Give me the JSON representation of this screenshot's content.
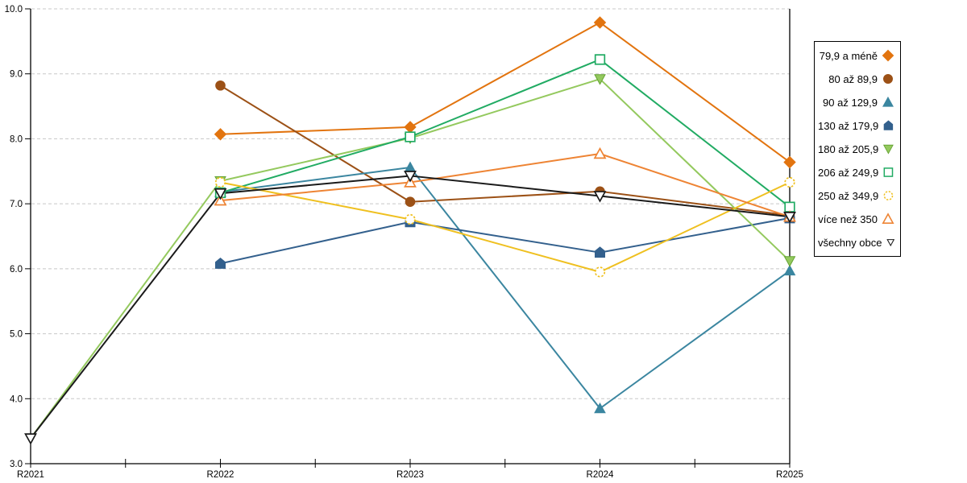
{
  "page": {
    "background": "#ffffff",
    "axis_color": "#000000",
    "grid_color": "#c8c8c8"
  },
  "chart_data": {
    "type": "line",
    "title": "",
    "xlabel": "",
    "ylabel": "",
    "categories": [
      "R2021",
      "R2022",
      "R2023",
      "R2024",
      "R2025"
    ],
    "ylim": [
      3.0,
      10.0
    ],
    "y_ticks": [
      {
        "value": 3,
        "label": "3.0"
      },
      {
        "value": 4,
        "label": "4.0"
      },
      {
        "value": 5,
        "label": "5.0"
      },
      {
        "value": 6,
        "label": "6.0"
      },
      {
        "value": 7,
        "label": "7.0"
      },
      {
        "value": 8,
        "label": "8.0"
      },
      {
        "value": 9,
        "label": "9.0"
      },
      {
        "value": 10,
        "label": "10.0"
      }
    ],
    "grid": "horizontal-dashed",
    "legend_position": "right",
    "series": [
      {
        "name": "79,9 a méně",
        "marker": "diamond",
        "fill": "solid",
        "color": "#e2740f",
        "values": [
          null,
          8.07,
          8.18,
          9.79,
          7.64
        ]
      },
      {
        "name": "80 až 89,9",
        "marker": "circle",
        "fill": "solid",
        "color": "#9c5116",
        "values": [
          null,
          8.82,
          7.03,
          7.19,
          6.82
        ]
      },
      {
        "name": "90 až 129,9",
        "marker": "triangle-up",
        "fill": "solid",
        "color": "#3b86a0",
        "values": [
          null,
          7.18,
          7.56,
          3.85,
          5.97
        ]
      },
      {
        "name": "130 až 179,9",
        "marker": "pentagon",
        "fill": "solid",
        "color": "#33608d",
        "values": [
          null,
          6.08,
          6.72,
          6.25,
          6.78
        ]
      },
      {
        "name": "180 až 205,9",
        "marker": "triangle-down",
        "fill": "solid",
        "color": "#94c95e",
        "edge": "#64a332",
        "values": [
          3.39,
          7.35,
          8.01,
          8.92,
          6.12
        ]
      },
      {
        "name": "206 až 249,9",
        "marker": "square",
        "fill": "open",
        "color": "#21ab63",
        "values": [
          null,
          7.17,
          8.03,
          9.22,
          6.95
        ]
      },
      {
        "name": "250 až 349,9",
        "marker": "circle",
        "fill": "open",
        "color": "#efc020",
        "dashed_marker": true,
        "values": [
          null,
          7.33,
          6.76,
          5.95,
          7.33
        ]
      },
      {
        "name": "více než 350",
        "marker": "triangle-up",
        "fill": "open",
        "color": "#ee8434",
        "values": [
          null,
          7.05,
          7.33,
          7.77,
          6.8
        ]
      },
      {
        "name": "všechny obce",
        "marker": "triangle-down",
        "fill": "open",
        "color": "#1a1a1a",
        "values": [
          3.39,
          7.16,
          7.43,
          7.12,
          6.8
        ]
      }
    ]
  }
}
